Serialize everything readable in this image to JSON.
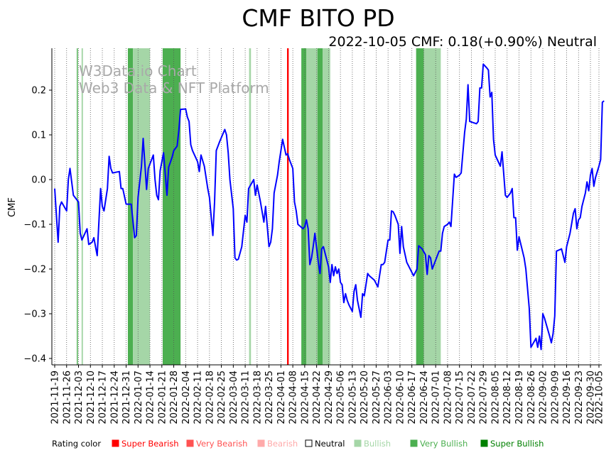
{
  "colors": {
    "line": "#0000ff",
    "very_bullish": "#4caf50",
    "bullish": "#a5d6a7",
    "super_bearish": "#ff0000",
    "very_bearish": "#ff5252",
    "bearish": "#ffaaaa",
    "super_bullish": "#008000",
    "grid": "#555555"
  },
  "chart_data": {
    "type": "line",
    "title": "CMF BITO PD",
    "subtitle": "2022-10-05 CMF: 0.18(+0.90%) Neutral",
    "ylabel": "CMF",
    "xlabel": "",
    "ylim": [
      -0.41,
      0.29
    ],
    "yticks": [
      0.2,
      0.1,
      0.0,
      -0.1,
      -0.2,
      -0.3,
      -0.4
    ],
    "ytick_labels": [
      "0.2",
      "0.1",
      "0.0",
      "−0.1",
      "−0.2",
      "−0.3",
      "−0.4"
    ],
    "x_start": "2021-11-19",
    "x_end": "2022-10-05",
    "xtick_labels": [
      "2021-11-19",
      "2021-11-26",
      "2021-12-03",
      "2021-12-10",
      "2021-12-17",
      "2021-12-24",
      "2021-12-31",
      "2022-01-07",
      "2022-01-14",
      "2022-01-21",
      "2022-01-28",
      "2022-02-04",
      "2022-02-11",
      "2022-02-18",
      "2022-02-25",
      "2022-03-04",
      "2022-03-11",
      "2022-03-18",
      "2022-03-25",
      "2022-04-01",
      "2022-04-08",
      "2022-04-15",
      "2022-04-22",
      "2022-04-29",
      "2022-05-06",
      "2022-05-13",
      "2022-05-20",
      "2022-05-27",
      "2022-06-03",
      "2022-06-10",
      "2022-06-17",
      "2022-06-24",
      "2022-07-01",
      "2022-07-08",
      "2022-07-15",
      "2022-07-22",
      "2022-07-29",
      "2022-08-05",
      "2022-08-12",
      "2022-08-19",
      "2022-08-26",
      "2022-09-02",
      "2022-09-09",
      "2022-09-16",
      "2022-09-23",
      "2022-09-30",
      "2022-10-05"
    ],
    "watermark": [
      "W3Data.io Chart",
      "Web3 Data & NFT Platform"
    ],
    "bands": [
      {
        "start": 13,
        "end": 13.6,
        "rating": "very_bullish"
      },
      {
        "start": 15.8,
        "end": 16.6,
        "rating": "bullish"
      },
      {
        "start": 43,
        "end": 46,
        "rating": "very_bullish"
      },
      {
        "start": 46,
        "end": 56,
        "rating": "bullish"
      },
      {
        "start": 63.5,
        "end": 74,
        "rating": "very_bullish"
      },
      {
        "start": 114.3,
        "end": 115.4,
        "rating": "bullish"
      },
      {
        "start": 136.6,
        "end": 137.6,
        "rating": "super_bearish"
      },
      {
        "start": 145,
        "end": 148,
        "rating": "very_bullish"
      },
      {
        "start": 148,
        "end": 154.5,
        "rating": "bullish"
      },
      {
        "start": 154.5,
        "end": 157.5,
        "rating": "very_bullish"
      },
      {
        "start": 157.5,
        "end": 162,
        "rating": "bullish"
      },
      {
        "start": 212.5,
        "end": 217,
        "rating": "very_bullish"
      },
      {
        "start": 217,
        "end": 227,
        "rating": "bullish"
      }
    ],
    "series": [
      {
        "name": "CMF",
        "points": [
          [
            0,
            -0.02
          ],
          [
            2,
            -0.14
          ],
          [
            3,
            -0.06
          ],
          [
            4,
            -0.05
          ],
          [
            7,
            -0.07
          ],
          [
            8,
            0.0
          ],
          [
            9,
            0.025
          ],
          [
            11,
            -0.035
          ],
          [
            14,
            -0.05
          ],
          [
            15,
            -0.12
          ],
          [
            16,
            -0.135
          ],
          [
            19,
            -0.11
          ],
          [
            20,
            -0.145
          ],
          [
            22,
            -0.14
          ],
          [
            23,
            -0.13
          ],
          [
            25,
            -0.17
          ],
          [
            27,
            -0.02
          ],
          [
            28,
            -0.06
          ],
          [
            29,
            -0.07
          ],
          [
            31,
            -0.02
          ],
          [
            32,
            0.052
          ],
          [
            33,
            0.025
          ],
          [
            34,
            0.015
          ],
          [
            38,
            0.018
          ],
          [
            39,
            -0.02
          ],
          [
            40,
            -0.02
          ],
          [
            42,
            -0.055
          ],
          [
            45,
            -0.055
          ],
          [
            47,
            -0.13
          ],
          [
            48,
            -0.125
          ],
          [
            49,
            -0.04
          ],
          [
            51,
            0.03
          ],
          [
            52,
            0.092
          ],
          [
            54,
            -0.022
          ],
          [
            55,
            0.025
          ],
          [
            58,
            0.055
          ],
          [
            59,
            0.0
          ],
          [
            60,
            -0.035
          ],
          [
            61,
            -0.045
          ],
          [
            62,
            0.02
          ],
          [
            64,
            0.06
          ],
          [
            66,
            -0.035
          ],
          [
            67,
            0.028
          ],
          [
            69,
            0.05
          ],
          [
            70,
            0.065
          ],
          [
            72,
            0.075
          ],
          [
            73,
            0.11
          ],
          [
            74,
            0.157
          ],
          [
            77,
            0.158
          ],
          [
            78,
            0.14
          ],
          [
            79,
            0.13
          ],
          [
            80,
            0.078
          ],
          [
            81,
            0.065
          ],
          [
            84,
            0.04
          ],
          [
            85,
            0.018
          ],
          [
            86,
            0.055
          ],
          [
            88,
            0.03
          ],
          [
            90,
            -0.02
          ],
          [
            91,
            -0.04
          ],
          [
            93,
            -0.125
          ],
          [
            94,
            -0.05
          ],
          [
            95,
            0.065
          ],
          [
            97,
            0.085
          ],
          [
            100,
            0.112
          ],
          [
            101,
            0.1
          ],
          [
            102,
            0.06
          ],
          [
            103,
            0.0
          ],
          [
            105,
            -0.065
          ],
          [
            106,
            -0.175
          ],
          [
            107,
            -0.18
          ],
          [
            108,
            -0.178
          ],
          [
            110,
            -0.15
          ],
          [
            112,
            -0.08
          ],
          [
            113,
            -0.095
          ],
          [
            114,
            -0.02
          ],
          [
            117,
            0.0
          ],
          [
            118,
            -0.035
          ],
          [
            119,
            -0.012
          ],
          [
            121,
            -0.05
          ],
          [
            123,
            -0.095
          ],
          [
            124,
            -0.06
          ],
          [
            126,
            -0.15
          ],
          [
            127,
            -0.14
          ],
          [
            128,
            -0.11
          ],
          [
            129,
            -0.03
          ],
          [
            131,
            0.01
          ],
          [
            132,
            0.04
          ],
          [
            134,
            0.09
          ],
          [
            136,
            0.055
          ],
          [
            137,
            0.058
          ],
          [
            138,
            0.045
          ],
          [
            140,
            0.025
          ],
          [
            141,
            -0.05
          ],
          [
            142,
            -0.07
          ],
          [
            143,
            -0.1
          ],
          [
            146,
            -0.11
          ],
          [
            147,
            -0.105
          ],
          [
            148,
            -0.09
          ],
          [
            149,
            -0.11
          ],
          [
            150,
            -0.19
          ],
          [
            151,
            -0.175
          ],
          [
            152,
            -0.15
          ],
          [
            153,
            -0.12
          ],
          [
            155,
            -0.185
          ],
          [
            156,
            -0.21
          ],
          [
            157,
            -0.155
          ],
          [
            158,
            -0.15
          ],
          [
            161,
            -0.195
          ],
          [
            162,
            -0.23
          ],
          [
            163,
            -0.19
          ],
          [
            164,
            -0.215
          ],
          [
            165,
            -0.195
          ],
          [
            166,
            -0.21
          ],
          [
            167,
            -0.2
          ],
          [
            168,
            -0.23
          ],
          [
            169,
            -0.235
          ],
          [
            170,
            -0.275
          ],
          [
            171,
            -0.255
          ],
          [
            172,
            -0.27
          ],
          [
            173,
            -0.28
          ],
          [
            175,
            -0.295
          ],
          [
            176,
            -0.25
          ],
          [
            177,
            -0.235
          ],
          [
            178,
            -0.27
          ],
          [
            180,
            -0.308
          ],
          [
            181,
            -0.255
          ],
          [
            182,
            -0.26
          ],
          [
            184,
            -0.21
          ],
          [
            185,
            -0.215
          ],
          [
            188,
            -0.225
          ],
          [
            190,
            -0.24
          ],
          [
            192,
            -0.19
          ],
          [
            193,
            -0.19
          ],
          [
            194,
            -0.185
          ],
          [
            196,
            -0.135
          ],
          [
            197,
            -0.135
          ],
          [
            198,
            -0.07
          ],
          [
            199,
            -0.072
          ],
          [
            200,
            -0.08
          ],
          [
            202,
            -0.1
          ],
          [
            203,
            -0.165
          ],
          [
            204,
            -0.105
          ],
          [
            205,
            -0.15
          ],
          [
            207,
            -0.185
          ],
          [
            209,
            -0.2
          ],
          [
            211,
            -0.215
          ],
          [
            213,
            -0.2
          ],
          [
            214,
            -0.148
          ],
          [
            216,
            -0.155
          ],
          [
            218,
            -0.168
          ],
          [
            219,
            -0.212
          ],
          [
            220,
            -0.17
          ],
          [
            221,
            -0.175
          ],
          [
            222,
            -0.2
          ],
          [
            223,
            -0.19
          ],
          [
            225,
            -0.17
          ],
          [
            226,
            -0.16
          ],
          [
            227,
            -0.16
          ],
          [
            228,
            -0.12
          ],
          [
            229,
            -0.105
          ],
          [
            231,
            -0.1
          ],
          [
            232,
            -0.095
          ],
          [
            233,
            -0.105
          ],
          [
            235,
            0.012
          ],
          [
            236,
            0.005
          ],
          [
            238,
            0.01
          ],
          [
            239,
            0.015
          ],
          [
            241,
            0.105
          ],
          [
            242,
            0.135
          ],
          [
            243,
            0.212
          ],
          [
            244,
            0.13
          ],
          [
            248,
            0.125
          ],
          [
            249,
            0.13
          ],
          [
            250,
            0.205
          ],
          [
            251,
            0.205
          ],
          [
            252,
            0.258
          ],
          [
            254,
            0.25
          ],
          [
            255,
            0.245
          ],
          [
            256,
            0.185
          ],
          [
            257,
            0.195
          ],
          [
            258,
            0.09
          ],
          [
            259,
            0.055
          ],
          [
            262,
            0.03
          ],
          [
            263,
            0.062
          ],
          [
            265,
            -0.035
          ],
          [
            266,
            -0.04
          ],
          [
            268,
            -0.03
          ],
          [
            269,
            -0.02
          ],
          [
            270,
            -0.085
          ],
          [
            271,
            -0.085
          ],
          [
            272,
            -0.158
          ],
          [
            273,
            -0.128
          ],
          [
            276,
            -0.175
          ],
          [
            277,
            -0.2
          ],
          [
            279,
            -0.288
          ],
          [
            280,
            -0.375
          ],
          [
            283,
            -0.355
          ],
          [
            284,
            -0.375
          ],
          [
            285,
            -0.35
          ],
          [
            286,
            -0.38
          ],
          [
            287,
            -0.3
          ],
          [
            288,
            -0.31
          ],
          [
            291,
            -0.35
          ],
          [
            292,
            -0.365
          ],
          [
            293,
            -0.345
          ],
          [
            294,
            -0.305
          ],
          [
            295,
            -0.16
          ],
          [
            298,
            -0.155
          ],
          [
            299,
            -0.17
          ],
          [
            300,
            -0.185
          ],
          [
            301,
            -0.15
          ],
          [
            303,
            -0.12
          ],
          [
            305,
            -0.075
          ],
          [
            306,
            -0.065
          ],
          [
            307,
            -0.11
          ],
          [
            308,
            -0.09
          ],
          [
            309,
            -0.085
          ],
          [
            310,
            -0.06
          ],
          [
            312,
            -0.03
          ],
          [
            313,
            -0.005
          ],
          [
            314,
            -0.025
          ],
          [
            315,
            0.01
          ],
          [
            316,
            0.025
          ],
          [
            317,
            -0.015
          ],
          [
            318,
            0.005
          ],
          [
            320,
            0.03
          ],
          [
            321,
            0.045
          ],
          [
            322,
            0.173
          ],
          [
            323,
            0.176
          ]
        ]
      }
    ]
  },
  "legend": {
    "heading": "Rating color",
    "items": [
      {
        "label": "Super Bearish",
        "color": "#ff0000"
      },
      {
        "label": "Very Bearish",
        "color": "#ff5252"
      },
      {
        "label": "Bearish",
        "color": "#ffaaaa"
      },
      {
        "label": "Neutral",
        "color": "#000000"
      },
      {
        "label": "Bullish",
        "color": "#a5d6a7"
      },
      {
        "label": "Very Bullish",
        "color": "#4caf50"
      },
      {
        "label": "Super Bullish",
        "color": "#008000"
      }
    ]
  }
}
